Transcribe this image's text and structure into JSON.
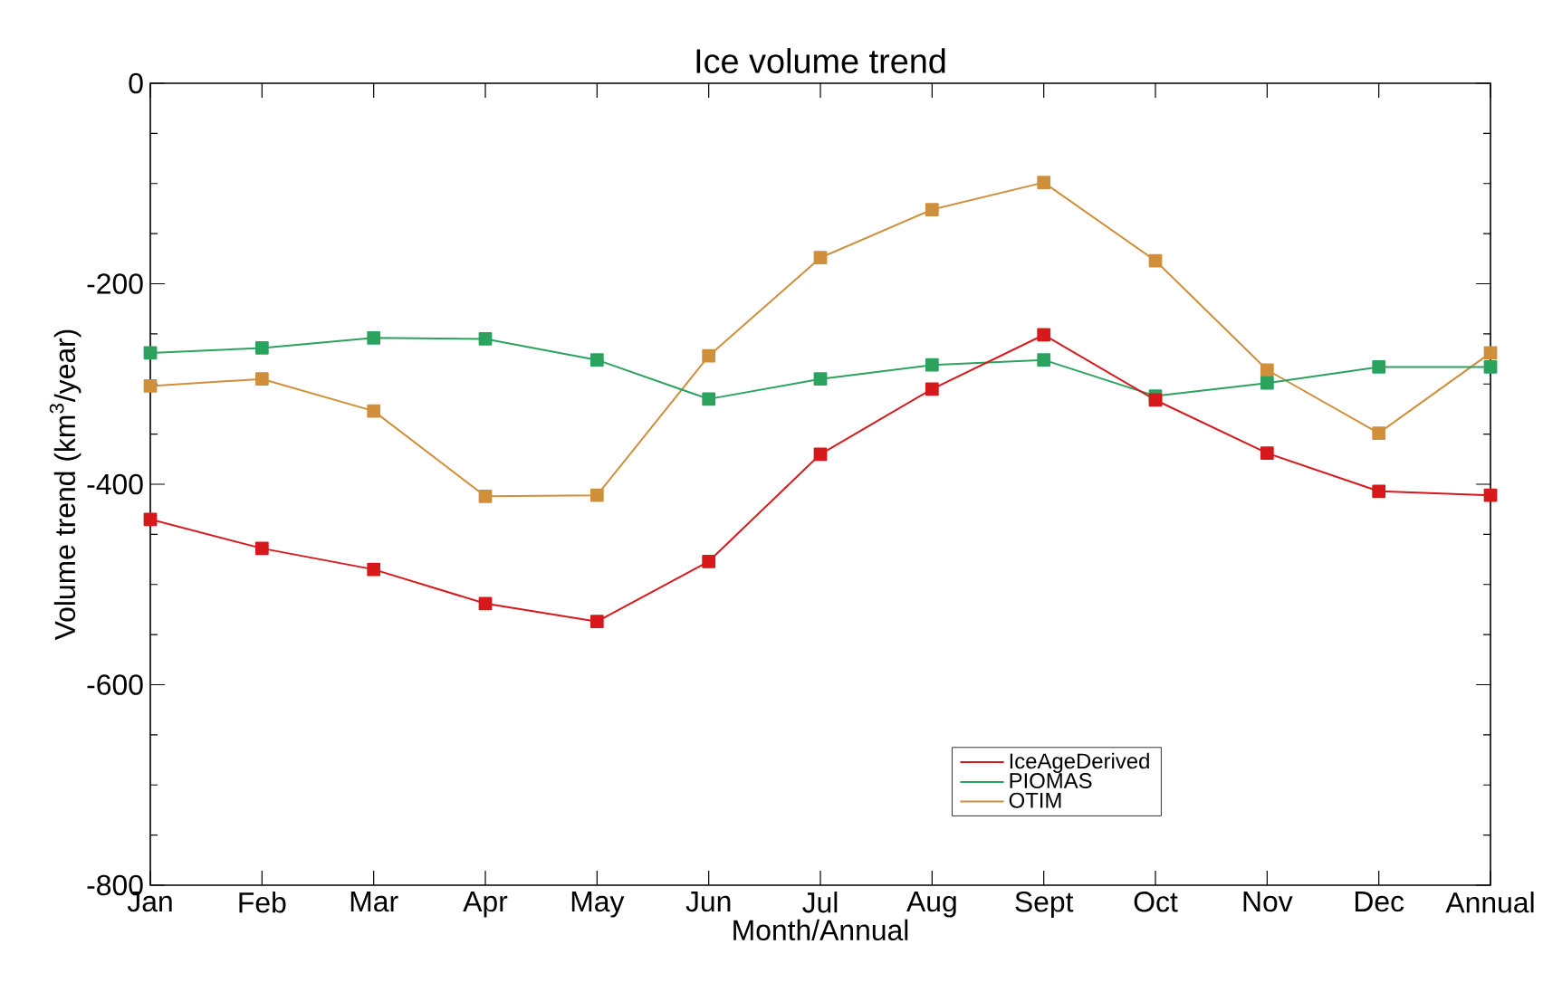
{
  "chart_data": {
    "type": "line",
    "title": "Ice volume trend",
    "xlabel": "Month/Annual",
    "ylabel": "Volume trend (km$^{3}$/year)",
    "categories": [
      "Jan",
      "Feb",
      "Mar",
      "Apr",
      "May",
      "Jun",
      "Jul",
      "Aug",
      "Sept",
      "Oct",
      "Nov",
      "Dec",
      "Annual"
    ],
    "ylim": [
      -800,
      0
    ],
    "yticks": [
      -800,
      -600,
      -400,
      -200,
      0
    ],
    "grid": false,
    "legend": "bottom right",
    "marker": "square",
    "line_style": "solid",
    "series": [
      {
        "name": "IceAgeDerived",
        "color": "#d7191c",
        "values": [
          -435,
          -464,
          -485,
          -519,
          -537,
          -477,
          -370,
          -305,
          -251,
          -316,
          -369,
          -407,
          -411
        ]
      },
      {
        "name": "PIOMAS",
        "color": "#2ca25f",
        "values": [
          -269,
          -264,
          -254,
          -255,
          -276,
          -315,
          -295,
          -281,
          -276,
          -312,
          -299,
          -283,
          -283
        ]
      },
      {
        "name": "OTIM",
        "color": "#d08f3a",
        "values": [
          -302,
          -295,
          -327,
          -412,
          -411,
          -272,
          -174,
          -126,
          -99,
          -177,
          -286,
          -349,
          -269
        ]
      }
    ]
  }
}
